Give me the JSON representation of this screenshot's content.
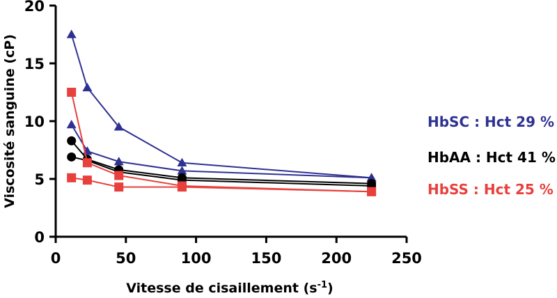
{
  "chart_data": {
    "type": "line",
    "xlabel": "Vitesse de cisaillement (s",
    "xlabel_superscript": "-1",
    "xlabel_suffix": ")",
    "ylabel": "Viscosité sanguine (cP)",
    "xlim": [
      0,
      250
    ],
    "ylim": [
      0,
      20
    ],
    "x_ticks": [
      0,
      50,
      100,
      150,
      200,
      250
    ],
    "y_ticks": [
      0,
      5,
      10,
      15,
      20
    ],
    "grid": false,
    "legend_position": "right",
    "series": [
      {
        "name": "HbSC : Hct 29 %",
        "color": "#2e3192",
        "marker": "triangle",
        "upper": {
          "x": [
            11.25,
            22.5,
            45,
            90,
            225
          ],
          "y": [
            17.5,
            12.9,
            9.5,
            6.4,
            5.1
          ]
        },
        "lower": {
          "x": [
            11.25,
            22.5,
            45,
            90,
            225
          ],
          "y": [
            9.7,
            7.4,
            6.5,
            5.7,
            5.1
          ]
        }
      },
      {
        "name": "HbAA : Hct 41 %",
        "color": "#000000",
        "marker": "circle",
        "upper": {
          "x": [
            11.25,
            22.5,
            45,
            90,
            225
          ],
          "y": [
            8.3,
            6.7,
            5.8,
            5.1,
            4.6
          ]
        },
        "lower": {
          "x": [
            11.25,
            22.5,
            45,
            90,
            225
          ],
          "y": [
            6.9,
            6.6,
            5.6,
            4.9,
            4.4
          ]
        }
      },
      {
        "name": "HbSS : Hct 25 %",
        "color": "#e8403c",
        "marker": "square",
        "upper": {
          "x": [
            11.25,
            22.5,
            45,
            90,
            225
          ],
          "y": [
            12.5,
            6.4,
            5.3,
            4.4,
            3.9
          ]
        },
        "lower": {
          "x": [
            11.25,
            22.5,
            45,
            90,
            225
          ],
          "y": [
            5.1,
            4.9,
            4.3,
            4.3,
            3.9
          ]
        }
      }
    ]
  }
}
